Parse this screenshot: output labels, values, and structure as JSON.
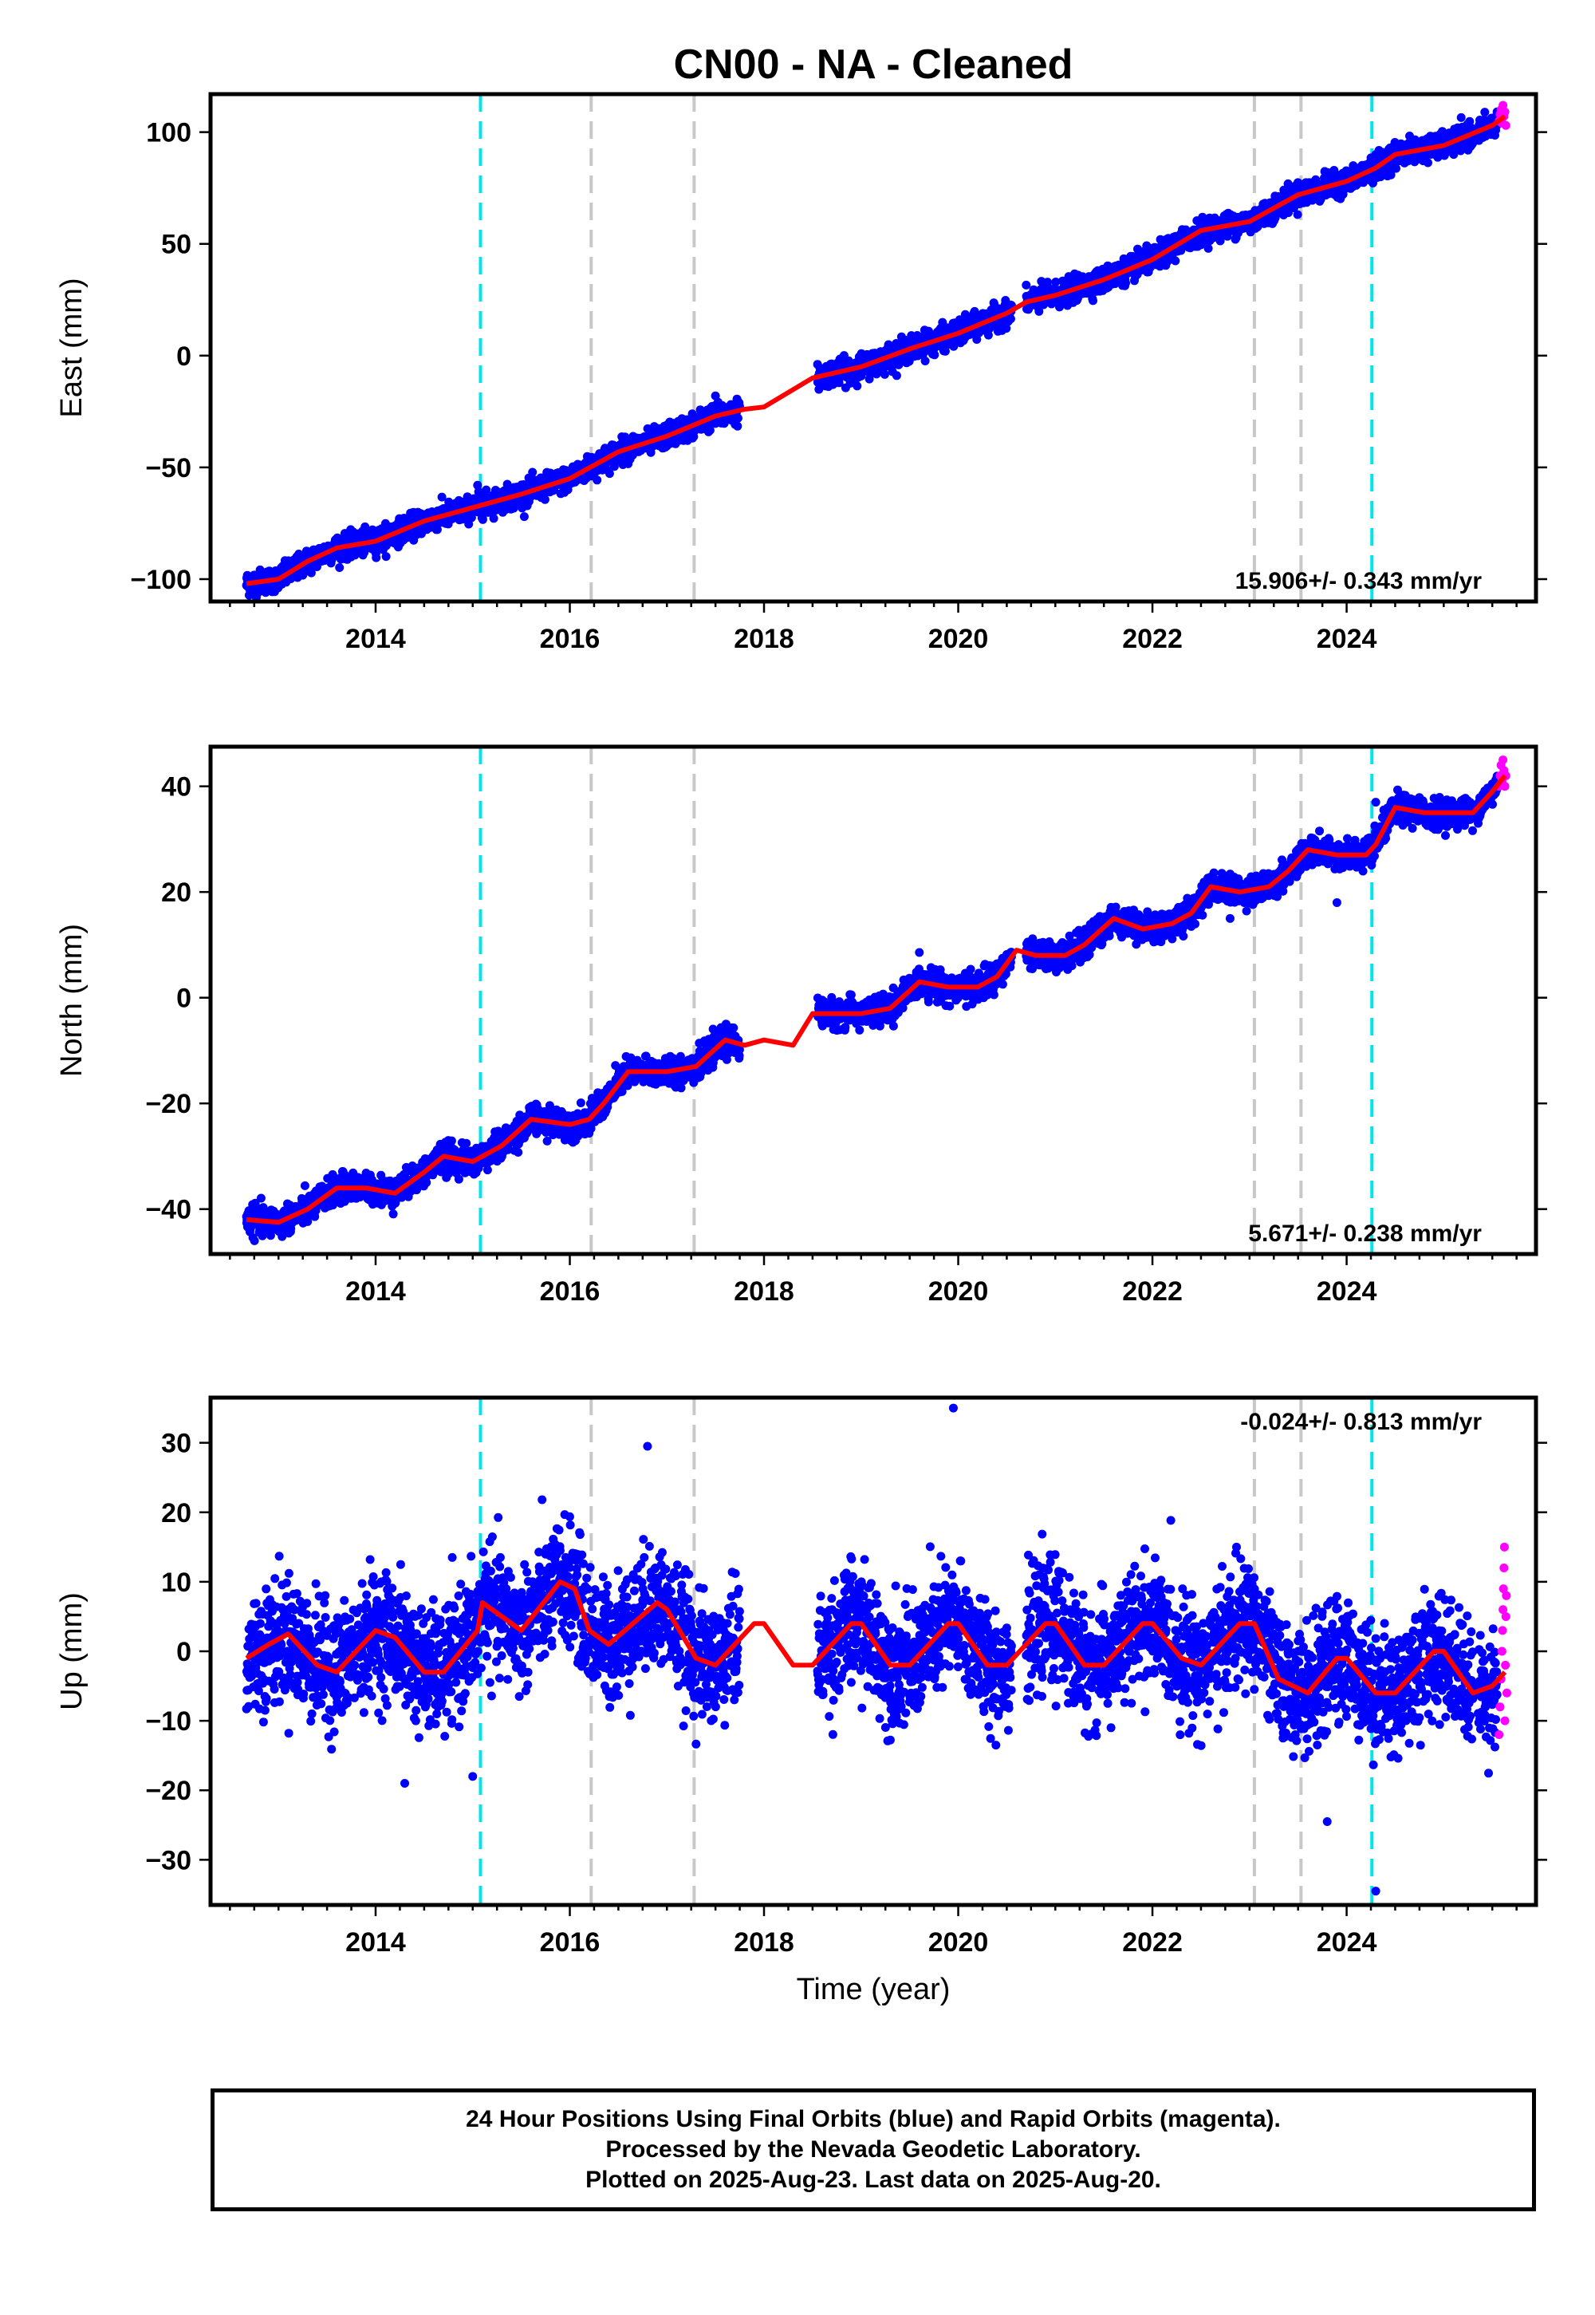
{
  "title": "CN00  - NA - Cleaned",
  "colors": {
    "final_orbits": "#0000ff",
    "rapid_orbits": "#ff00ff",
    "model": "#ff0000",
    "equipment_change": "#c8c8c8",
    "earthquake": "#00e5ee"
  },
  "chart_data": [
    {
      "type": "scatter",
      "name": "east",
      "ylabel": "East (mm)",
      "xlabel": "",
      "xlim": [
        2012.3,
        2025.95
      ],
      "ylim": [
        -110,
        117
      ],
      "x_ticks": [
        2014,
        2016,
        2018,
        2020,
        2022,
        2024
      ],
      "y_ticks": [
        -100,
        -50,
        0,
        50,
        100
      ],
      "rate_label": "15.906+/- 0.343 mm/yr",
      "rate_position": "bottom-right",
      "model_curve": [
        [
          2012.67,
          -102
        ],
        [
          2013.0,
          -100
        ],
        [
          2013.3,
          -92
        ],
        [
          2013.6,
          -86
        ],
        [
          2014.0,
          -83
        ],
        [
          2014.5,
          -74
        ],
        [
          2015.0,
          -68
        ],
        [
          2015.5,
          -62
        ],
        [
          2016.0,
          -55
        ],
        [
          2016.5,
          -43
        ],
        [
          2017.0,
          -36
        ],
        [
          2017.5,
          -27
        ],
        [
          2017.8,
          -24
        ],
        [
          2018.0,
          -23
        ],
        [
          2018.5,
          -10
        ],
        [
          2019.0,
          -5
        ],
        [
          2019.5,
          3
        ],
        [
          2020.0,
          10
        ],
        [
          2020.5,
          19
        ],
        [
          2020.7,
          24
        ],
        [
          2021.0,
          27
        ],
        [
          2021.5,
          34
        ],
        [
          2022.0,
          43
        ],
        [
          2022.5,
          56
        ],
        [
          2023.0,
          60
        ],
        [
          2023.5,
          72
        ],
        [
          2024.0,
          78
        ],
        [
          2024.3,
          84
        ],
        [
          2024.5,
          90
        ],
        [
          2025.0,
          94
        ],
        [
          2025.5,
          103
        ],
        [
          2025.63,
          107
        ]
      ],
      "gaps": [
        [
          2017.75,
          2018.55
        ],
        [
          2020.55,
          2020.7
        ],
        [
          2025.3,
          2025.35
        ]
      ],
      "x_start": 2012.67,
      "x_end": 2025.55,
      "noise_mm": 2.6,
      "outliers": [
        [
          2015.05,
          -58
        ],
        [
          2017.5,
          -18
        ],
        [
          2024.3,
          90
        ]
      ],
      "rapid_points": [
        [
          2025.57,
          105
        ],
        [
          2025.58,
          108
        ],
        [
          2025.59,
          110
        ],
        [
          2025.6,
          104
        ],
        [
          2025.61,
          112
        ],
        [
          2025.62,
          107
        ],
        [
          2025.63,
          109
        ],
        [
          2025.64,
          103
        ]
      ]
    },
    {
      "type": "scatter",
      "name": "north",
      "ylabel": "North (mm)",
      "xlabel": "",
      "xlim": [
        2012.3,
        2025.95
      ],
      "ylim": [
        -48.5,
        47.5
      ],
      "x_ticks": [
        2014,
        2016,
        2018,
        2020,
        2022,
        2024
      ],
      "y_ticks": [
        -40,
        -20,
        0,
        20,
        40
      ],
      "rate_label": "5.671+/- 0.238 mm/yr",
      "rate_position": "bottom-right",
      "model_curve": [
        [
          2012.67,
          -42
        ],
        [
          2013.0,
          -42.5
        ],
        [
          2013.3,
          -40
        ],
        [
          2013.6,
          -36
        ],
        [
          2013.9,
          -36
        ],
        [
          2014.2,
          -37
        ],
        [
          2014.5,
          -33
        ],
        [
          2014.7,
          -30
        ],
        [
          2015.0,
          -31
        ],
        [
          2015.3,
          -28
        ],
        [
          2015.6,
          -23
        ],
        [
          2016.0,
          -24
        ],
        [
          2016.2,
          -23
        ],
        [
          2016.35,
          -20
        ],
        [
          2016.6,
          -14
        ],
        [
          2017.0,
          -14
        ],
        [
          2017.3,
          -13
        ],
        [
          2017.6,
          -8
        ],
        [
          2017.8,
          -9
        ],
        [
          2018.0,
          -8
        ],
        [
          2018.3,
          -9
        ],
        [
          2018.5,
          -3
        ],
        [
          2018.8,
          -3
        ],
        [
          2019.0,
          -3
        ],
        [
          2019.3,
          -2
        ],
        [
          2019.6,
          3
        ],
        [
          2019.9,
          2
        ],
        [
          2020.2,
          2
        ],
        [
          2020.4,
          4
        ],
        [
          2020.6,
          9
        ],
        [
          2020.8,
          8
        ],
        [
          2021.1,
          8
        ],
        [
          2021.3,
          10
        ],
        [
          2021.6,
          15
        ],
        [
          2021.9,
          13
        ],
        [
          2022.2,
          14
        ],
        [
          2022.4,
          16
        ],
        [
          2022.6,
          21
        ],
        [
          2022.9,
          20
        ],
        [
          2023.2,
          21
        ],
        [
          2023.4,
          24
        ],
        [
          2023.6,
          28
        ],
        [
          2023.9,
          27
        ],
        [
          2024.2,
          27
        ],
        [
          2024.3,
          29
        ],
        [
          2024.5,
          36
        ],
        [
          2024.8,
          35
        ],
        [
          2025.1,
          35
        ],
        [
          2025.3,
          35
        ],
        [
          2025.5,
          39
        ],
        [
          2025.63,
          42
        ]
      ],
      "gaps": [
        [
          2017.75,
          2018.55
        ],
        [
          2020.55,
          2020.7
        ],
        [
          2025.3,
          2025.35
        ]
      ],
      "x_start": 2012.67,
      "x_end": 2025.55,
      "noise_mm": 1.3,
      "outliers": [
        [
          2023.9,
          18
        ],
        [
          2024.3,
          37
        ],
        [
          2022.8,
          15
        ]
      ],
      "rapid_points": [
        [
          2025.57,
          40
        ],
        [
          2025.58,
          42
        ],
        [
          2025.59,
          44
        ],
        [
          2025.6,
          41
        ],
        [
          2025.61,
          45
        ],
        [
          2025.62,
          43
        ],
        [
          2025.63,
          40
        ],
        [
          2025.64,
          42
        ]
      ]
    },
    {
      "type": "scatter",
      "name": "up",
      "ylabel": "Up (mm)",
      "xlabel": "Time (year)",
      "xlim": [
        2012.3,
        2025.95
      ],
      "ylim": [
        -36.5,
        36.5
      ],
      "x_ticks": [
        2014,
        2016,
        2018,
        2020,
        2022,
        2024
      ],
      "y_ticks": [
        -30,
        -20,
        -10,
        0,
        10,
        20,
        30
      ],
      "rate_label": "-0.024+/- 0.813 mm/yr",
      "rate_position": "top-right",
      "model_curve": [
        [
          2012.67,
          -1
        ],
        [
          2012.9,
          1
        ],
        [
          2013.1,
          2.5
        ],
        [
          2013.4,
          -2
        ],
        [
          2013.6,
          -3
        ],
        [
          2014.0,
          3
        ],
        [
          2014.2,
          2
        ],
        [
          2014.5,
          -3
        ],
        [
          2014.7,
          -3
        ],
        [
          2015.05,
          3
        ],
        [
          2015.1,
          7
        ],
        [
          2015.3,
          5
        ],
        [
          2015.5,
          3
        ],
        [
          2015.9,
          10
        ],
        [
          2016.05,
          9
        ],
        [
          2016.2,
          3
        ],
        [
          2016.4,
          1
        ],
        [
          2016.9,
          7
        ],
        [
          2017.0,
          6
        ],
        [
          2017.3,
          -1
        ],
        [
          2017.5,
          -2
        ],
        [
          2017.9,
          4
        ],
        [
          2018.0,
          4
        ],
        [
          2018.3,
          -2
        ],
        [
          2018.5,
          -2
        ],
        [
          2018.9,
          4
        ],
        [
          2019.0,
          4
        ],
        [
          2019.3,
          -2
        ],
        [
          2019.5,
          -2
        ],
        [
          2019.9,
          4
        ],
        [
          2020.0,
          4
        ],
        [
          2020.3,
          -2
        ],
        [
          2020.5,
          -2
        ],
        [
          2020.9,
          4
        ],
        [
          2021.0,
          4
        ],
        [
          2021.3,
          -2
        ],
        [
          2021.5,
          -2
        ],
        [
          2021.9,
          4
        ],
        [
          2022.0,
          4
        ],
        [
          2022.3,
          -1
        ],
        [
          2022.5,
          -2
        ],
        [
          2022.9,
          4
        ],
        [
          2023.05,
          4
        ],
        [
          2023.3,
          -4
        ],
        [
          2023.6,
          -6
        ],
        [
          2023.9,
          -1
        ],
        [
          2024.0,
          -1
        ],
        [
          2024.3,
          -6
        ],
        [
          2024.5,
          -6
        ],
        [
          2024.9,
          0
        ],
        [
          2025.0,
          0
        ],
        [
          2025.3,
          -6
        ],
        [
          2025.5,
          -5
        ],
        [
          2025.63,
          -3
        ]
      ],
      "gaps": [
        [
          2017.75,
          2018.55
        ],
        [
          2020.55,
          2020.7
        ],
        [
          2025.3,
          2025.35
        ]
      ],
      "x_start": 2012.67,
      "x_end": 2025.55,
      "noise_mm": 4.2,
      "outliers": [
        [
          2016.8,
          29.5
        ],
        [
          2019.95,
          35
        ],
        [
          2014.3,
          -19
        ],
        [
          2024.3,
          -34.5
        ],
        [
          2023.8,
          -24.5
        ],
        [
          2015.0,
          -18
        ]
      ],
      "rapid_points": [
        [
          2025.57,
          -12
        ],
        [
          2025.58,
          -8
        ],
        [
          2025.59,
          -4
        ],
        [
          2025.6,
          0
        ],
        [
          2025.605,
          3
        ],
        [
          2025.61,
          6
        ],
        [
          2025.615,
          9
        ],
        [
          2025.62,
          12
        ],
        [
          2025.625,
          15
        ],
        [
          2025.63,
          -10
        ],
        [
          2025.635,
          -2
        ],
        [
          2025.64,
          5
        ],
        [
          2025.645,
          8
        ],
        [
          2025.65,
          -6
        ]
      ]
    }
  ],
  "equipment_change_lines": [
    2016.22,
    2017.28,
    2023.05,
    2023.53
  ],
  "earthquake_lines": [
    2015.08,
    2024.26
  ],
  "footer": {
    "line1": "24 Hour Positions Using Final Orbits (blue) and Rapid Orbits (magenta).",
    "line2": "Processed by the Nevada Geodetic Laboratory.",
    "line3": "Plotted on 2025-Aug-23. Last data on 2025-Aug-20."
  }
}
